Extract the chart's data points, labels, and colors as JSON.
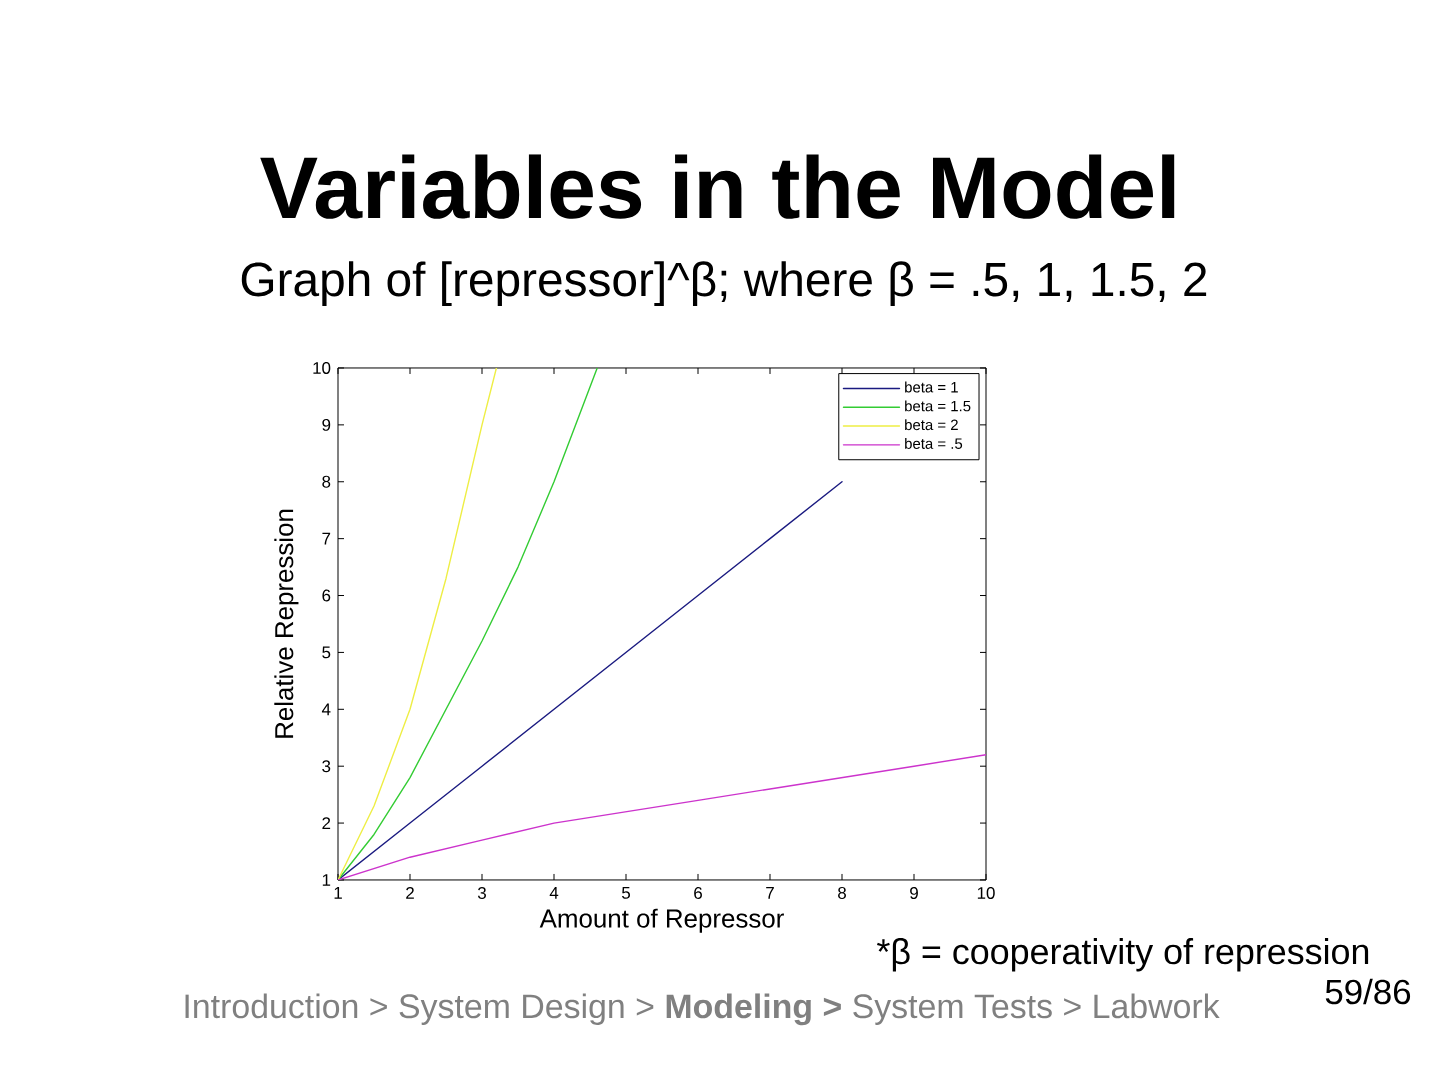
{
  "chart_data": {
    "type": "line",
    "title": "Variables in the Model",
    "subtitle": "Graph of [repressor]^β; where β = .5, 1, 1.5, 2",
    "xlabel": "Amount of Repressor",
    "ylabel": "Relative Repression",
    "annotations": [
      "*β = cooperativity of repression",
      "Introduction > System Design > **Modeling >** System Tests > Labwork",
      "59/86"
    ],
    "xlim": [
      1,
      10
    ],
    "ylim": [
      1,
      10
    ],
    "xticks": [
      1,
      2,
      3,
      4,
      5,
      6,
      7,
      8,
      9,
      10
    ],
    "yticks": [
      1,
      2,
      3,
      4,
      5,
      6,
      7,
      8,
      9,
      10
    ],
    "legend": "top right",
    "line_style": "solid",
    "series": [
      {
        "name": "beta = 1",
        "color": "#1a1a80",
        "x": [
          1,
          2,
          3,
          4,
          5,
          6,
          7,
          8
        ],
        "values": [
          1,
          2,
          3,
          4,
          5,
          6,
          7,
          8
        ]
      },
      {
        "name": "beta = 1.5",
        "color": "#33cc33",
        "x": [
          1,
          1.5,
          2,
          2.5,
          3,
          3.5,
          4,
          4.6
        ],
        "values": [
          1,
          1.8,
          2.8,
          4.0,
          5.2,
          6.5,
          8.0,
          10
        ]
      },
      {
        "name": "beta = 2",
        "color": "#eeee44",
        "x": [
          1,
          1.5,
          2,
          2.5,
          3,
          3.2
        ],
        "values": [
          1,
          2.3,
          4.0,
          6.3,
          9.0,
          10
        ]
      },
      {
        "name": "beta = .5",
        "color": "#cc33cc",
        "x": [
          1,
          2,
          3,
          4,
          5,
          6,
          7,
          8,
          9,
          10
        ],
        "values": [
          1,
          1.4,
          1.7,
          2.0,
          2.2,
          2.4,
          2.6,
          2.8,
          3.0,
          3.2
        ]
      }
    ]
  }
}
